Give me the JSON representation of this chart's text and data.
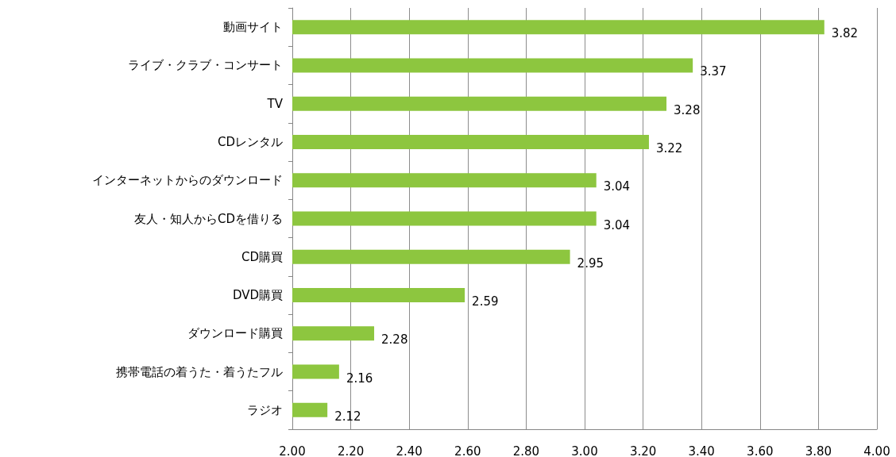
{
  "chart_data": {
    "type": "bar",
    "orientation": "horizontal",
    "categories": [
      "動画サイト",
      "ライブ・クラブ・コンサート",
      "TV",
      "CDレンタル",
      "インターネットからのダウンロード",
      "友人・知人からCDを借りる",
      "CD購買",
      "DVD購買",
      "ダウンロード購買",
      "携帯電話の着うた・着うたフル",
      "ラジオ"
    ],
    "values": [
      3.82,
      3.37,
      3.28,
      3.22,
      3.04,
      3.04,
      2.95,
      2.59,
      2.28,
      2.16,
      2.12
    ],
    "color": "#8dc63f",
    "xlim": [
      2,
      4
    ],
    "xticks": [
      {
        "value": 2,
        "label": "2.00"
      },
      {
        "value": 2.2,
        "label": "2.20"
      },
      {
        "value": 2.4,
        "label": "2.40"
      },
      {
        "value": 2.6,
        "label": "2.60"
      },
      {
        "value": 2.8,
        "label": "2.80"
      },
      {
        "value": 3,
        "label": "3.00"
      },
      {
        "value": 3.2,
        "label": "3.20"
      },
      {
        "value": 3.4,
        "label": "3.40"
      },
      {
        "value": 3.6,
        "label": "3.60"
      },
      {
        "value": 3.8,
        "label": "3.80"
      },
      {
        "value": 4,
        "label": "4.00"
      }
    ],
    "grid": "x",
    "data_labels": true
  }
}
